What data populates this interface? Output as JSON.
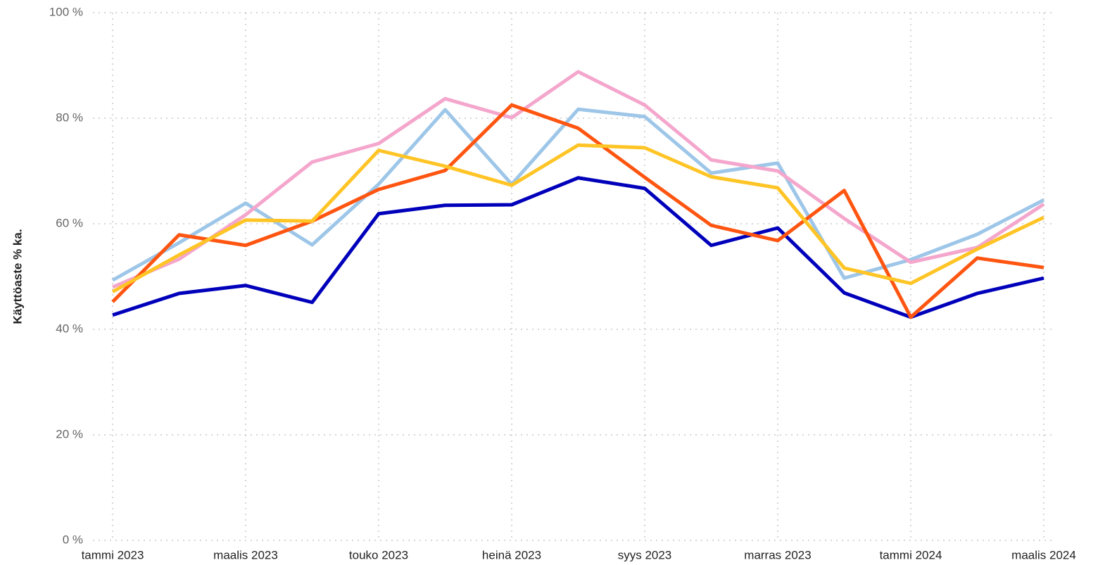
{
  "chart_data": {
    "type": "line",
    "y_label": "Käyttöaste % ka.",
    "categories": [
      "tammi 2023",
      null,
      "maalis 2023",
      null,
      "touko 2023",
      null,
      "heinä 2023",
      null,
      "syys 2023",
      null,
      "marras 2023",
      null,
      "tammi 2024",
      null,
      "maalis 2024"
    ],
    "series": [
      {
        "color": "#0000bb",
        "values": [
          42.7,
          46.8,
          48.3,
          45.1,
          61.9,
          63.5,
          63.6,
          68.7,
          66.7,
          55.9,
          59.2,
          46.9,
          42.3,
          46.8,
          49.7
        ]
      },
      {
        "color": "#9dc6e8",
        "values": [
          49.3,
          56.4,
          63.9,
          56.0,
          67.5,
          81.6,
          67.5,
          81.7,
          80.3,
          69.6,
          71.5,
          49.7,
          53.2,
          58.0,
          64.5
        ]
      },
      {
        "color": "#f4a6cc",
        "values": [
          48.0,
          53.3,
          61.7,
          71.7,
          75.2,
          83.7,
          80.1,
          88.8,
          82.5,
          72.1,
          70.0,
          61.0,
          52.7,
          55.5,
          63.7
        ]
      },
      {
        "color": "#ff5511",
        "values": [
          45.2,
          57.9,
          55.9,
          60.5,
          66.5,
          70.1,
          82.5,
          78.1,
          68.8,
          59.7,
          56.8,
          66.3,
          42.3,
          53.5,
          51.7
        ]
      },
      {
        "color": "#ffc425",
        "values": [
          47.1,
          54.1,
          60.7,
          60.5,
          73.9,
          70.9,
          67.3,
          74.9,
          74.4,
          68.9,
          66.8,
          51.6,
          48.7,
          55.2,
          61.2
        ]
      }
    ],
    "ylim": [
      0,
      100
    ],
    "yticks": [
      {
        "value": 0,
        "label": "0 %"
      },
      {
        "value": 20,
        "label": "20 %"
      },
      {
        "value": 40,
        "label": "40 %"
      },
      {
        "value": 60,
        "label": "60 %"
      },
      {
        "value": 80,
        "label": "80 %"
      },
      {
        "value": 100,
        "label": "100 %"
      }
    ],
    "grid": true
  }
}
